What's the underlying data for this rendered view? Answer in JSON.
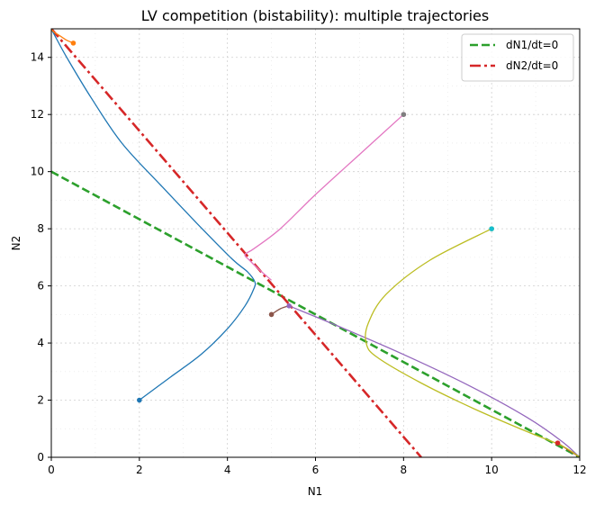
{
  "chart_data": {
    "type": "line",
    "title": "LV competition (bistability): multiple trajectories",
    "xlabel": "N1",
    "ylabel": "N2",
    "xlim": [
      0,
      12
    ],
    "ylim": [
      0,
      15
    ],
    "xticks": [
      0,
      2,
      4,
      6,
      8,
      10,
      12
    ],
    "yticks": [
      0,
      2,
      4,
      6,
      8,
      10,
      12,
      14
    ],
    "grid": true,
    "legend_position": "top-right",
    "nullclines": [
      {
        "name": "dN1/dt=0",
        "color": "#2ca02c",
        "dash": "dashed",
        "x": [
          0,
          12
        ],
        "y": [
          10,
          0
        ]
      },
      {
        "name": "dN2/dt=0",
        "color": "#d62728",
        "dash": "dashdot",
        "x": [
          0,
          8.4
        ],
        "y": [
          15,
          0
        ]
      }
    ],
    "trajectories": [
      {
        "color": "#1f77b4",
        "start": [
          2,
          2
        ],
        "points": [
          [
            2,
            2
          ],
          [
            2.7,
            2.8
          ],
          [
            3.4,
            3.6
          ],
          [
            4.0,
            4.5
          ],
          [
            4.4,
            5.3
          ],
          [
            4.6,
            5.9
          ],
          [
            4.62,
            6.15
          ],
          [
            4.45,
            6.5
          ],
          [
            4.1,
            6.95
          ],
          [
            3.3,
            8.2
          ],
          [
            2.5,
            9.5
          ],
          [
            1.6,
            11.0
          ],
          [
            0.9,
            12.6
          ],
          [
            0.35,
            14.0
          ],
          [
            0.05,
            14.85
          ],
          [
            0,
            15
          ]
        ]
      },
      {
        "color": "#ff7f0e",
        "start": [
          0.5,
          14.5
        ],
        "points": [
          [
            0.5,
            14.5
          ],
          [
            0.35,
            14.6
          ],
          [
            0.2,
            14.75
          ],
          [
            0.05,
            14.9
          ],
          [
            0,
            15
          ]
        ]
      },
      {
        "color": "#d62728",
        "start": [
          11.5,
          0.5
        ],
        "points": [
          [
            11.5,
            0.5
          ],
          [
            11.65,
            0.35
          ],
          [
            11.8,
            0.2
          ],
          [
            11.95,
            0.05
          ],
          [
            12,
            0
          ]
        ]
      },
      {
        "color": "#9467bd",
        "start": [
          5.4,
          5.3
        ],
        "points": [
          [
            5.4,
            5.3
          ],
          [
            6.5,
            4.6
          ],
          [
            8.0,
            3.6
          ],
          [
            9.5,
            2.5
          ],
          [
            10.8,
            1.4
          ],
          [
            11.6,
            0.55
          ],
          [
            12,
            0
          ]
        ]
      },
      {
        "color": "#8c564b",
        "start": [
          5,
          5
        ],
        "points": [
          [
            5,
            5
          ],
          [
            5.2,
            5.2
          ],
          [
            5.4,
            5.3
          ]
        ]
      },
      {
        "color": "#e377c2",
        "start": [
          8,
          12
        ],
        "points": [
          [
            8,
            12
          ],
          [
            7.0,
            10.6
          ],
          [
            6.0,
            9.2
          ],
          [
            5.2,
            8.0
          ],
          [
            4.6,
            7.3
          ],
          [
            4.4,
            7.1
          ],
          [
            4.5,
            6.9
          ],
          [
            4.7,
            6.6
          ],
          [
            5.0,
            6.2
          ]
        ]
      },
      {
        "color": "#7f7f7f",
        "start": [
          8,
          12
        ],
        "points": []
      },
      {
        "color": "#bcbd22",
        "start": [
          10,
          8
        ],
        "points": [
          [
            10,
            8
          ],
          [
            8.6,
            6.9
          ],
          [
            7.6,
            5.7
          ],
          [
            7.2,
            4.7
          ],
          [
            7.15,
            4.0
          ],
          [
            7.4,
            3.5
          ],
          [
            8.4,
            2.6
          ],
          [
            9.6,
            1.7
          ],
          [
            10.8,
            0.9
          ],
          [
            11.6,
            0.4
          ],
          [
            12,
            0
          ]
        ]
      },
      {
        "color": "#17becf",
        "start": [
          10,
          8
        ],
        "points": []
      }
    ]
  }
}
